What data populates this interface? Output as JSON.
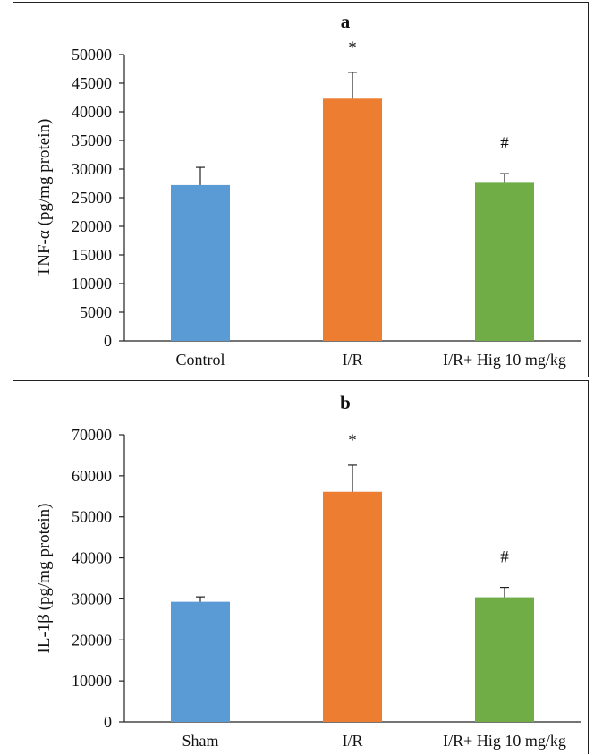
{
  "chart_data": [
    {
      "type": "bar",
      "title": "a",
      "ylabel": "TNF-α (pg/mg protein)",
      "xlabel": "",
      "categories": [
        "Control",
        "I/R",
        "I/R+ Hig 10 mg/kg"
      ],
      "values": [
        27200,
        42300,
        27600
      ],
      "errors": [
        3100,
        4600,
        1600
      ],
      "annotations": [
        "",
        "*",
        "#"
      ],
      "colors": [
        "#5b9bd5",
        "#ed7d31",
        "#70ad47"
      ],
      "ylim": [
        0,
        50000
      ],
      "yticks": [
        "0",
        "5000",
        "10000",
        "15000",
        "20000",
        "25000",
        "30000",
        "35000",
        "40000",
        "45000",
        "50000"
      ],
      "ytick_values": [
        0,
        5000,
        10000,
        15000,
        20000,
        25000,
        30000,
        35000,
        40000,
        45000,
        50000
      ],
      "grid": false
    },
    {
      "type": "bar",
      "title": "b",
      "ylabel": "IL-1β (pg/mg protein)",
      "xlabel": "",
      "categories": [
        "Sham",
        "I/R",
        "I/R+ Hig 10 mg/kg"
      ],
      "values": [
        29300,
        56100,
        30400
      ],
      "errors": [
        1200,
        6500,
        2400
      ],
      "annotations": [
        "",
        "*",
        "#"
      ],
      "colors": [
        "#5b9bd5",
        "#ed7d31",
        "#70ad47"
      ],
      "ylim": [
        0,
        70000
      ],
      "yticks": [
        "0",
        "10000",
        "20000",
        "30000",
        "40000",
        "50000",
        "60000",
        "70000"
      ],
      "ytick_values": [
        0,
        10000,
        20000,
        30000,
        40000,
        50000,
        60000,
        70000
      ],
      "grid": false
    }
  ]
}
